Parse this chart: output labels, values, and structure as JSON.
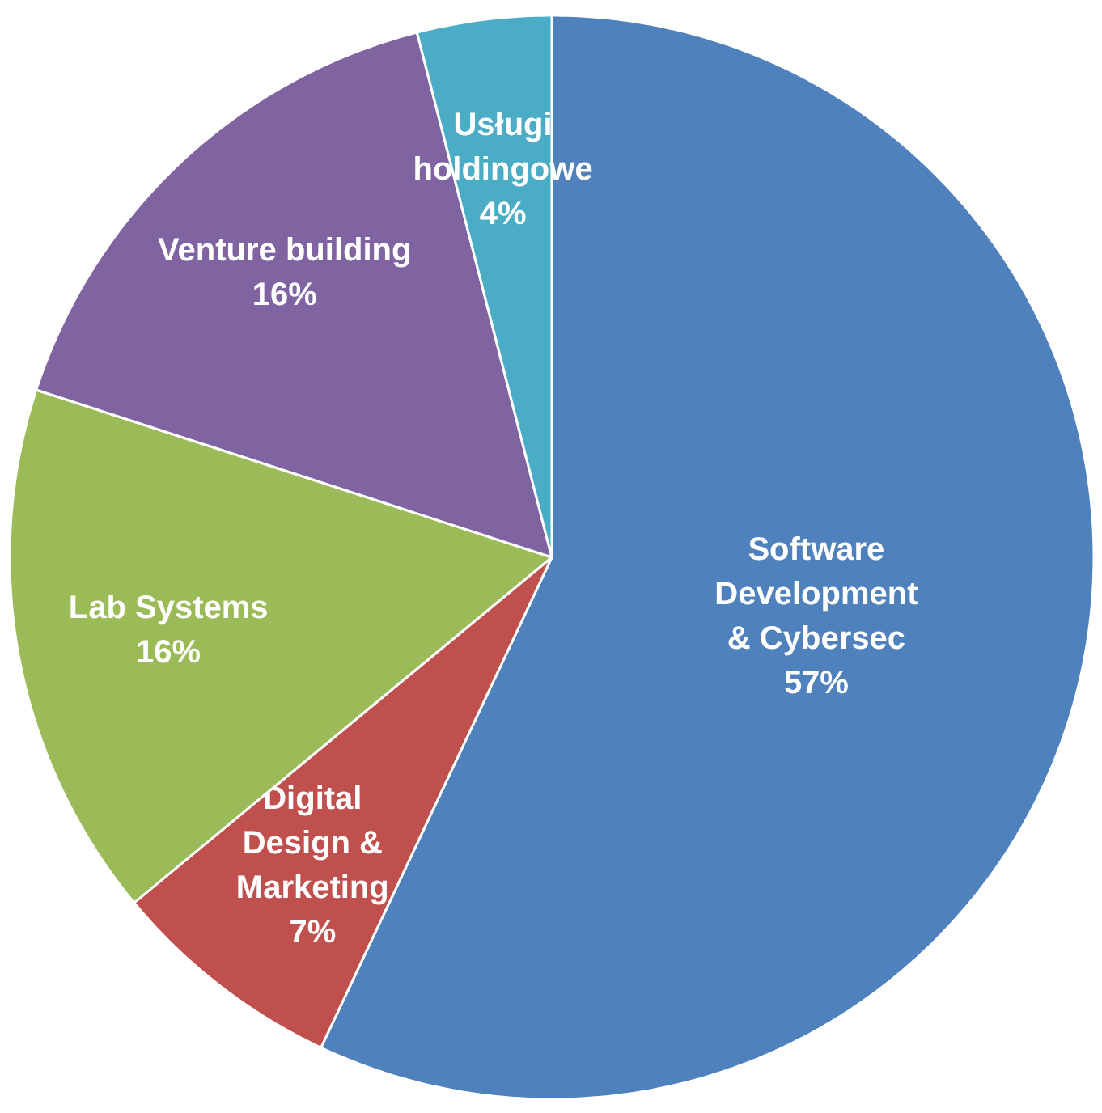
{
  "chart_data": {
    "type": "pie",
    "categories": [
      "Software\nDevelopment\n& Cybersec",
      "Digital\nDesign &\nMarketing",
      "Lab Systems",
      "Venture building",
      "Usługi\nholdingowe"
    ],
    "values": [
      57,
      7,
      16,
      16,
      4
    ],
    "value_labels": [
      "57%",
      "7%",
      "16%",
      "16%",
      "4%"
    ],
    "colors": [
      "#4f81bd",
      "#c0504d",
      "#9bbb59",
      "#8064a2",
      "#4bacc6"
    ],
    "legend": false
  }
}
